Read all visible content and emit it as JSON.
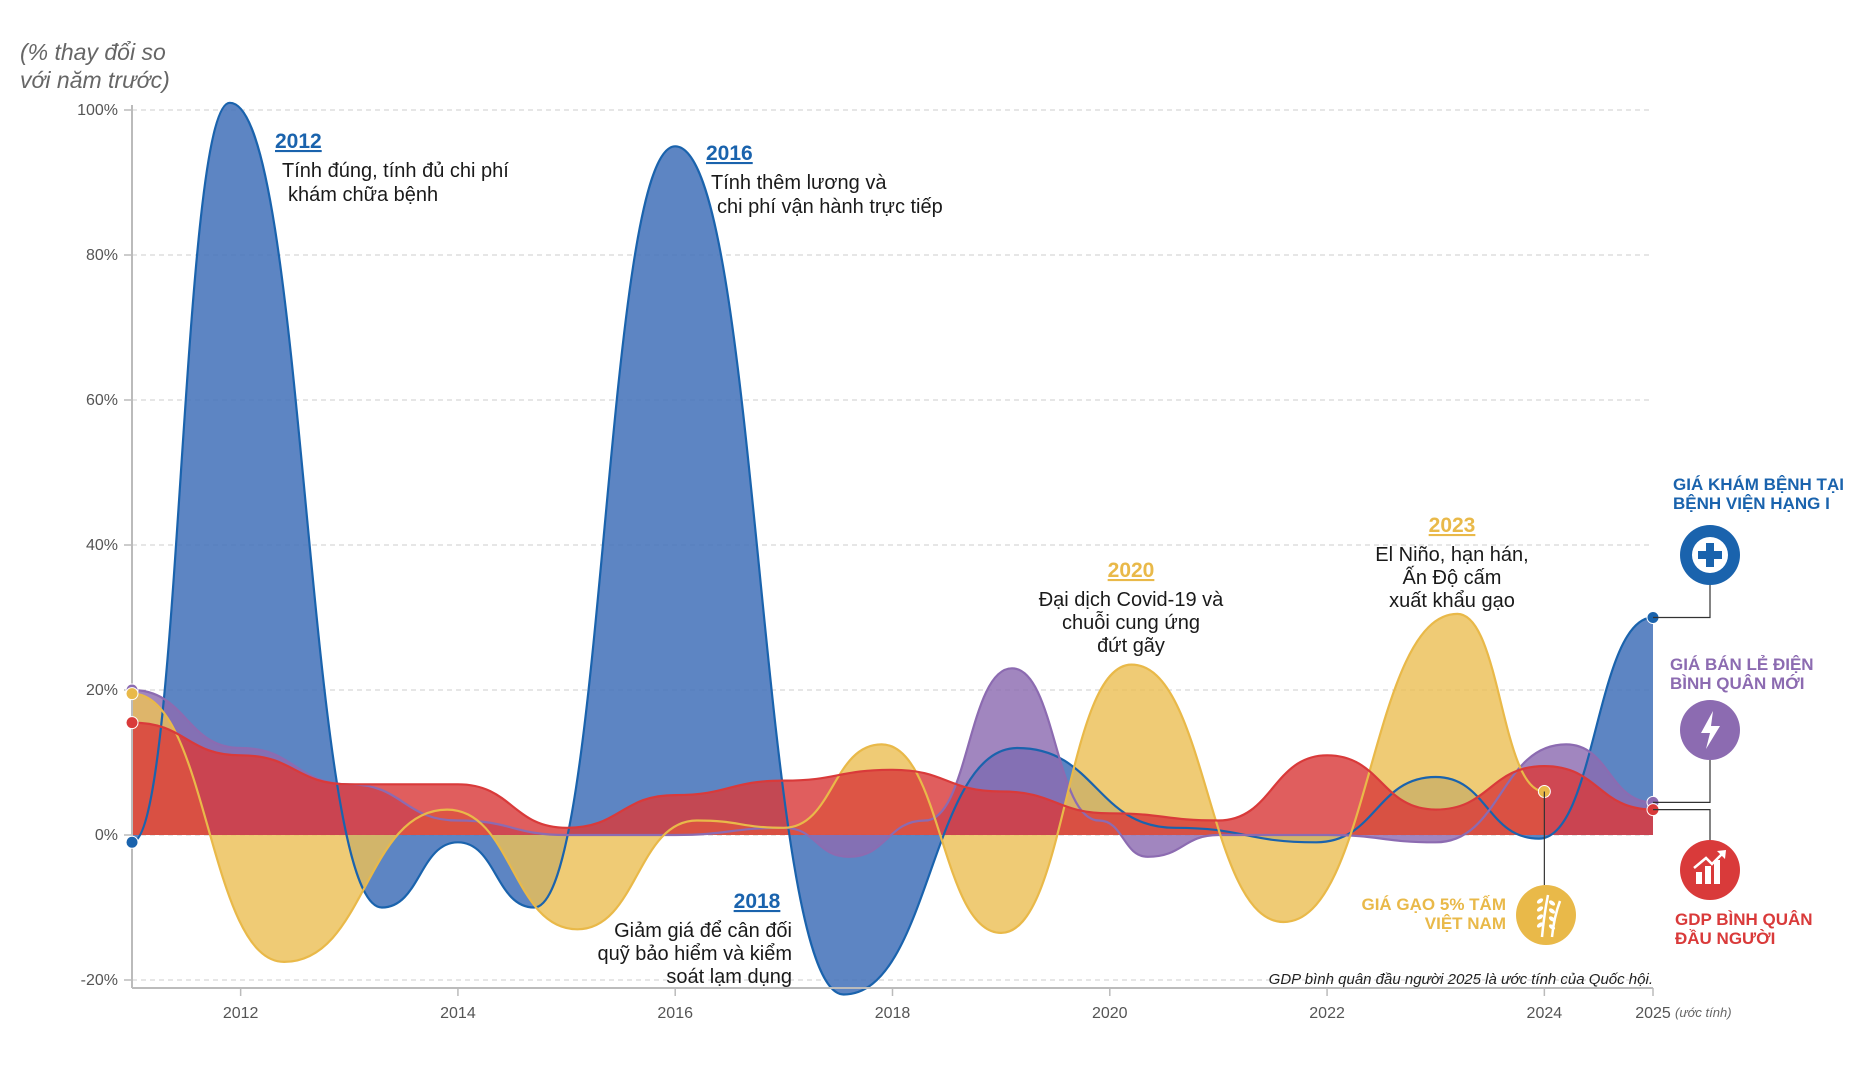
{
  "chart_data": {
    "type": "area",
    "ylabel_lines": [
      "(% thay đổi so",
      "với năm trước)"
    ],
    "ylim": [
      -20,
      100
    ],
    "yticks": [
      {
        "v": 100,
        "label": "100%"
      },
      {
        "v": 80,
        "label": "80%"
      },
      {
        "v": 60,
        "label": "60%"
      },
      {
        "v": 40,
        "label": "40%"
      },
      {
        "v": 20,
        "label": "20%"
      },
      {
        "v": 0,
        "label": "0%"
      },
      {
        "v": -20,
        "label": "-20%"
      }
    ],
    "xlim": [
      2011,
      2025
    ],
    "xticks": [
      {
        "v": 2012,
        "label": "2012"
      },
      {
        "v": 2014,
        "label": "2014"
      },
      {
        "v": 2016,
        "label": "2016"
      },
      {
        "v": 2018,
        "label": "2018"
      },
      {
        "v": 2020,
        "label": "2020"
      },
      {
        "v": 2022,
        "label": "2022"
      },
      {
        "v": 2024,
        "label": "2024"
      },
      {
        "v": 2025,
        "label": "2025"
      }
    ],
    "x_last_suffix": "(ước tính)",
    "grid": true,
    "series": [
      {
        "name": "GIÁ KHÁM BỆNH TẠI BỆNH VIỆN HẠNG I",
        "color": "#1a63ad",
        "fill": "#4b78bd",
        "points": [
          [
            2011,
            -1
          ],
          [
            2011.9,
            101
          ],
          [
            2013.3,
            -10
          ],
          [
            2014,
            -1
          ],
          [
            2014.7,
            -10
          ],
          [
            2016,
            95
          ],
          [
            2017.55,
            -22
          ],
          [
            2019.15,
            12
          ],
          [
            2020.6,
            1
          ],
          [
            2021.9,
            -1
          ],
          [
            2023,
            8
          ],
          [
            2023.95,
            -0.5
          ],
          [
            2025,
            30
          ]
        ]
      },
      {
        "name": "GIÁ BÁN LẺ ĐIỆN BÌNH QUÂN MỚI",
        "color": "#8c6bb1",
        "fill": "#8c6bb1",
        "points": [
          [
            2011,
            20
          ],
          [
            2012,
            12
          ],
          [
            2013,
            7
          ],
          [
            2014,
            2
          ],
          [
            2015,
            0
          ],
          [
            2016,
            0
          ],
          [
            2017,
            1
          ],
          [
            2017.6,
            -3
          ],
          [
            2018.3,
            2
          ],
          [
            2019.1,
            23
          ],
          [
            2019.9,
            2
          ],
          [
            2020.35,
            -3
          ],
          [
            2021,
            0
          ],
          [
            2022,
            0
          ],
          [
            2023,
            -1
          ],
          [
            2024.2,
            12.5
          ],
          [
            2025,
            4.5
          ]
        ]
      },
      {
        "name": "GIÁ GẠO 5% TẤM VIỆT NAM",
        "color": "#e9b949",
        "fill": "#ebc057",
        "points": [
          [
            2011,
            19.5
          ],
          [
            2012.4,
            -17.5
          ],
          [
            2013.9,
            3.5
          ],
          [
            2015.1,
            -13
          ],
          [
            2016.2,
            2
          ],
          [
            2017,
            1
          ],
          [
            2017.9,
            12.5
          ],
          [
            2019.0,
            -13.5
          ],
          [
            2020.2,
            23.5
          ],
          [
            2021.6,
            -12
          ],
          [
            2023.2,
            30.5
          ],
          [
            2024,
            6
          ]
        ]
      },
      {
        "name": "GDP BÌNH QUÂN ĐẦU NGƯỜI",
        "color": "#d93a3a",
        "fill": "#d93a3a",
        "points": [
          [
            2011,
            15.5
          ],
          [
            2012,
            11
          ],
          [
            2013,
            7
          ],
          [
            2014,
            7
          ],
          [
            2015,
            1
          ],
          [
            2016,
            5.5
          ],
          [
            2017,
            7.5
          ],
          [
            2018,
            9
          ],
          [
            2019,
            6
          ],
          [
            2020,
            3
          ],
          [
            2021,
            2
          ],
          [
            2022,
            11
          ],
          [
            2023,
            3.5
          ],
          [
            2024,
            9.5
          ],
          [
            2025,
            3.5
          ]
        ]
      }
    ],
    "annotations": [
      {
        "year": "2012",
        "lines": [
          "Tính đúng, tính đủ chi phí",
          "khám chữa bệnh"
        ],
        "color": "#1a63ad"
      },
      {
        "year": "2016",
        "lines": [
          "Tính thêm lương và",
          "chi phí vận hành trực tiếp"
        ],
        "color": "#1a63ad"
      },
      {
        "year": "2018",
        "lines": [
          "Giảm giá để cân đối",
          "quỹ bảo hiểm và kiểm",
          "soát lạm dụng"
        ],
        "color": "#1a63ad"
      },
      {
        "year": "2020",
        "lines": [
          "Đại dịch Covid-19 và",
          "chuỗi cung ứng",
          "đứt gãy"
        ],
        "color": "#e9b949"
      },
      {
        "year": "2023",
        "lines": [
          "El Niño, hạn hán,",
          "Ấn Độ cấm",
          "xuất khẩu gạo"
        ],
        "color": "#e9b949"
      }
    ],
    "legend": [
      {
        "lines": [
          "GIÁ KHÁM BỆNH TẠI",
          "BỆNH VIỆN HẠNG I"
        ],
        "color": "#1a63ad",
        "icon": "medical-cross-icon"
      },
      {
        "lines": [
          "GIÁ BÁN LẺ ĐIỆN",
          "BÌNH QUÂN MỚI"
        ],
        "color": "#8c6bb1",
        "icon": "lightning-icon"
      },
      {
        "lines": [
          "GIÁ GẠO 5% TẤM",
          "VIỆT NAM"
        ],
        "color": "#e9b949",
        "icon": "rice-icon"
      },
      {
        "lines": [
          "GDP BÌNH QUÂN",
          "ĐẦU NGƯỜI"
        ],
        "color": "#d93a3a",
        "icon": "growth-chart-icon"
      }
    ],
    "note": "GDP bình quân đầu người 2025 là ước tính của Quốc hội."
  }
}
